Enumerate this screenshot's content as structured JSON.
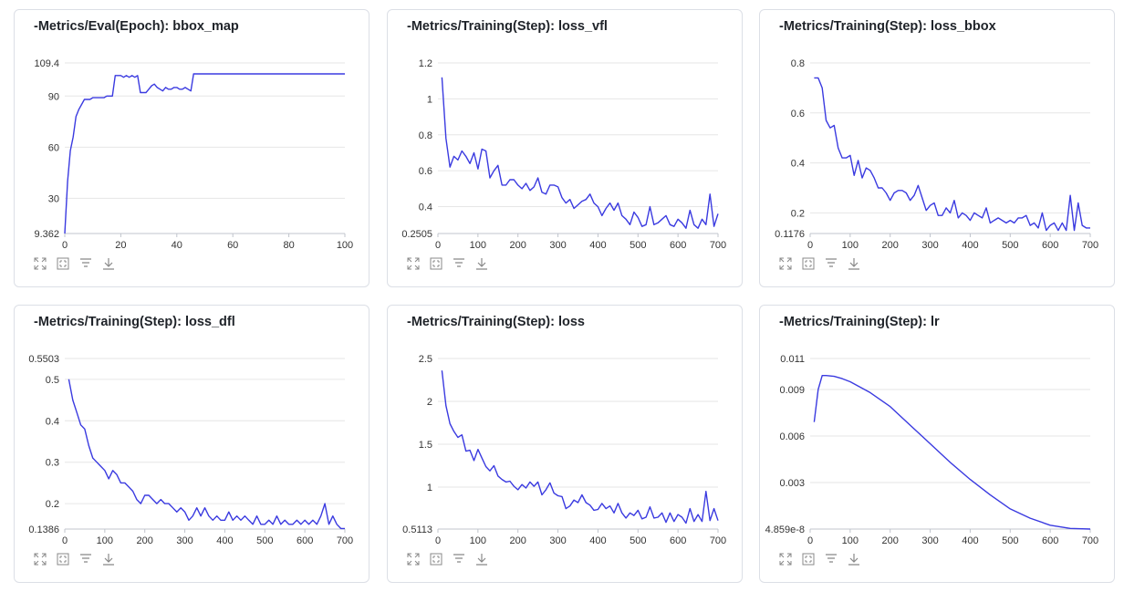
{
  "colors": {
    "line": "#3a3ae0",
    "grid": "#e6e6e6",
    "axis": "#c0c4cc"
  },
  "toolbar_icons": [
    "fullscreen-icon",
    "fit-view-icon",
    "filter-icon",
    "download-icon"
  ],
  "chart_data": [
    {
      "type": "line",
      "title": "-Metrics/Eval(Epoch): bbox_map",
      "xlim": [
        0,
        100
      ],
      "ylim": [
        9.362,
        109.4
      ],
      "xticks": [
        0,
        20,
        40,
        60,
        80,
        100
      ],
      "yticks": [
        9.362,
        30,
        60,
        90,
        109.4
      ],
      "ytick_labels": [
        "9.362",
        "30",
        "60",
        "90",
        "109.4"
      ],
      "series": [
        {
          "name": "bbox_map",
          "x": [
            0,
            1,
            2,
            3,
            4,
            5,
            6,
            7,
            8,
            9,
            10,
            11,
            12,
            13,
            14,
            15,
            16,
            17,
            18,
            19,
            20,
            21,
            22,
            23,
            24,
            25,
            26,
            27,
            28,
            29,
            30,
            31,
            32,
            33,
            34,
            35,
            36,
            37,
            38,
            39,
            40,
            41,
            42,
            43,
            44,
            45,
            46,
            48,
            50,
            52,
            54,
            56,
            58,
            60,
            62,
            64,
            66,
            68,
            70,
            72,
            74,
            76,
            78,
            80,
            82,
            84,
            86,
            88,
            90,
            92,
            94,
            96,
            98,
            100
          ],
          "y": [
            9.362,
            40,
            58,
            66,
            78,
            82,
            85,
            88,
            88,
            88,
            89,
            89,
            89,
            89,
            89,
            90,
            90,
            90,
            102,
            102,
            102,
            101,
            102,
            101,
            102,
            101,
            102,
            92,
            92,
            92,
            94,
            96,
            97,
            95,
            94,
            93,
            95,
            94,
            94,
            95,
            95,
            94,
            94,
            95,
            94,
            93,
            103,
            103,
            103,
            103,
            103,
            103,
            103,
            103,
            103,
            103,
            103,
            103,
            103,
            103,
            103,
            103,
            103,
            103,
            103,
            103,
            103,
            103,
            103,
            103,
            103,
            103,
            103,
            103
          ]
        }
      ]
    },
    {
      "type": "line",
      "title": "-Metrics/Training(Step): loss_vfl",
      "xlim": [
        0,
        700
      ],
      "ylim": [
        0.2505,
        1.2
      ],
      "xticks": [
        0,
        100,
        200,
        300,
        400,
        500,
        600,
        700
      ],
      "yticks": [
        0.2505,
        0.4,
        0.6,
        0.8,
        1,
        1.2
      ],
      "ytick_labels": [
        "0.2505",
        "0.4",
        "0.6",
        "0.8",
        "1",
        "1.2"
      ],
      "series": [
        {
          "name": "loss_vfl",
          "x": [
            10,
            20,
            30,
            40,
            50,
            60,
            70,
            80,
            90,
            100,
            110,
            120,
            130,
            140,
            150,
            160,
            170,
            180,
            190,
            200,
            210,
            220,
            230,
            240,
            250,
            260,
            270,
            280,
            290,
            300,
            310,
            320,
            330,
            340,
            350,
            360,
            370,
            380,
            390,
            400,
            410,
            420,
            430,
            440,
            450,
            460,
            470,
            480,
            490,
            500,
            510,
            520,
            530,
            540,
            550,
            560,
            570,
            580,
            590,
            600,
            610,
            620,
            630,
            640,
            650,
            660,
            670,
            680,
            690,
            700
          ],
          "y": [
            1.12,
            0.78,
            0.62,
            0.68,
            0.66,
            0.71,
            0.68,
            0.64,
            0.7,
            0.61,
            0.72,
            0.71,
            0.56,
            0.6,
            0.63,
            0.52,
            0.52,
            0.55,
            0.55,
            0.52,
            0.5,
            0.53,
            0.49,
            0.51,
            0.56,
            0.48,
            0.47,
            0.52,
            0.52,
            0.51,
            0.45,
            0.42,
            0.44,
            0.39,
            0.41,
            0.43,
            0.44,
            0.47,
            0.42,
            0.4,
            0.35,
            0.39,
            0.42,
            0.38,
            0.42,
            0.35,
            0.33,
            0.3,
            0.37,
            0.34,
            0.29,
            0.3,
            0.4,
            0.3,
            0.31,
            0.33,
            0.35,
            0.3,
            0.29,
            0.33,
            0.31,
            0.28,
            0.38,
            0.3,
            0.28,
            0.33,
            0.3,
            0.47,
            0.29,
            0.36
          ]
        }
      ]
    },
    {
      "type": "line",
      "title": "-Metrics/Training(Step): loss_bbox",
      "xlim": [
        0,
        700
      ],
      "ylim": [
        0.1176,
        0.8
      ],
      "xticks": [
        0,
        100,
        200,
        300,
        400,
        500,
        600,
        700
      ],
      "yticks": [
        0.1176,
        0.2,
        0.4,
        0.6,
        0.8
      ],
      "ytick_labels": [
        "0.1176",
        "0.2",
        "0.4",
        "0.6",
        "0.8"
      ],
      "series": [
        {
          "name": "loss_bbox",
          "x": [
            10,
            20,
            30,
            40,
            50,
            60,
            70,
            80,
            90,
            100,
            110,
            120,
            130,
            140,
            150,
            160,
            170,
            180,
            190,
            200,
            210,
            220,
            230,
            240,
            250,
            260,
            270,
            280,
            290,
            300,
            310,
            320,
            330,
            340,
            350,
            360,
            370,
            380,
            390,
            400,
            410,
            420,
            430,
            440,
            450,
            460,
            470,
            480,
            490,
            500,
            510,
            520,
            530,
            540,
            550,
            560,
            570,
            580,
            590,
            600,
            610,
            620,
            630,
            640,
            650,
            660,
            670,
            680,
            690,
            700
          ],
          "y": [
            0.74,
            0.74,
            0.7,
            0.57,
            0.54,
            0.55,
            0.46,
            0.42,
            0.42,
            0.43,
            0.35,
            0.41,
            0.34,
            0.38,
            0.37,
            0.34,
            0.3,
            0.3,
            0.28,
            0.25,
            0.28,
            0.29,
            0.29,
            0.28,
            0.25,
            0.27,
            0.31,
            0.26,
            0.21,
            0.23,
            0.24,
            0.19,
            0.19,
            0.22,
            0.2,
            0.25,
            0.18,
            0.2,
            0.19,
            0.17,
            0.2,
            0.19,
            0.18,
            0.22,
            0.16,
            0.17,
            0.18,
            0.17,
            0.16,
            0.17,
            0.16,
            0.18,
            0.18,
            0.19,
            0.15,
            0.16,
            0.14,
            0.2,
            0.13,
            0.15,
            0.16,
            0.13,
            0.16,
            0.13,
            0.27,
            0.13,
            0.24,
            0.15,
            0.14,
            0.14
          ]
        }
      ]
    },
    {
      "type": "line",
      "title": "-Metrics/Training(Step): loss_dfl",
      "xlim": [
        0,
        700
      ],
      "ylim": [
        0.1386,
        0.5503
      ],
      "xticks": [
        0,
        100,
        200,
        300,
        400,
        500,
        600,
        700
      ],
      "yticks": [
        0.1386,
        0.2,
        0.3,
        0.4,
        0.5,
        0.5503
      ],
      "ytick_labels": [
        "0.1386",
        "0.2",
        "0.3",
        "0.4",
        "0.5",
        "0.5503"
      ],
      "series": [
        {
          "name": "loss_dfl",
          "x": [
            10,
            20,
            30,
            40,
            50,
            60,
            70,
            80,
            90,
            100,
            110,
            120,
            130,
            140,
            150,
            160,
            170,
            180,
            190,
            200,
            210,
            220,
            230,
            240,
            250,
            260,
            270,
            280,
            290,
            300,
            310,
            320,
            330,
            340,
            350,
            360,
            370,
            380,
            390,
            400,
            410,
            420,
            430,
            440,
            450,
            460,
            470,
            480,
            490,
            500,
            510,
            520,
            530,
            540,
            550,
            560,
            570,
            580,
            590,
            600,
            610,
            620,
            630,
            640,
            650,
            660,
            670,
            680,
            690,
            700
          ],
          "y": [
            0.5,
            0.45,
            0.42,
            0.39,
            0.38,
            0.34,
            0.31,
            0.3,
            0.29,
            0.28,
            0.26,
            0.28,
            0.27,
            0.25,
            0.25,
            0.24,
            0.23,
            0.21,
            0.2,
            0.22,
            0.22,
            0.21,
            0.2,
            0.21,
            0.2,
            0.2,
            0.19,
            0.18,
            0.19,
            0.18,
            0.16,
            0.17,
            0.19,
            0.17,
            0.19,
            0.17,
            0.16,
            0.17,
            0.16,
            0.16,
            0.18,
            0.16,
            0.17,
            0.16,
            0.17,
            0.16,
            0.15,
            0.17,
            0.15,
            0.15,
            0.16,
            0.15,
            0.17,
            0.15,
            0.16,
            0.15,
            0.15,
            0.16,
            0.15,
            0.16,
            0.15,
            0.16,
            0.15,
            0.17,
            0.2,
            0.15,
            0.17,
            0.15,
            0.14,
            0.14
          ]
        }
      ]
    },
    {
      "type": "line",
      "title": "-Metrics/Training(Step): loss",
      "xlim": [
        0,
        700
      ],
      "ylim": [
        0.5113,
        2.5
      ],
      "xticks": [
        0,
        100,
        200,
        300,
        400,
        500,
        600,
        700
      ],
      "yticks": [
        0.5113,
        1,
        1.5,
        2,
        2.5
      ],
      "ytick_labels": [
        "0.5113",
        "1",
        "1.5",
        "2",
        "2.5"
      ],
      "series": [
        {
          "name": "loss",
          "x": [
            10,
            20,
            30,
            40,
            50,
            60,
            70,
            80,
            90,
            100,
            110,
            120,
            130,
            140,
            150,
            160,
            170,
            180,
            190,
            200,
            210,
            220,
            230,
            240,
            250,
            260,
            270,
            280,
            290,
            300,
            310,
            320,
            330,
            340,
            350,
            360,
            370,
            380,
            390,
            400,
            410,
            420,
            430,
            440,
            450,
            460,
            470,
            480,
            490,
            500,
            510,
            520,
            530,
            540,
            550,
            560,
            570,
            580,
            590,
            600,
            610,
            620,
            630,
            640,
            650,
            660,
            670,
            680,
            690,
            700
          ],
          "y": [
            2.36,
            1.95,
            1.74,
            1.65,
            1.58,
            1.61,
            1.42,
            1.43,
            1.31,
            1.44,
            1.34,
            1.24,
            1.19,
            1.25,
            1.13,
            1.09,
            1.06,
            1.07,
            1.01,
            0.97,
            1.03,
            0.99,
            1.06,
            1.01,
            1.06,
            0.91,
            0.97,
            1.05,
            0.93,
            0.9,
            0.89,
            0.75,
            0.78,
            0.85,
            0.82,
            0.91,
            0.82,
            0.79,
            0.73,
            0.74,
            0.81,
            0.75,
            0.78,
            0.7,
            0.81,
            0.7,
            0.64,
            0.7,
            0.67,
            0.73,
            0.63,
            0.65,
            0.77,
            0.64,
            0.65,
            0.7,
            0.59,
            0.7,
            0.6,
            0.68,
            0.65,
            0.58,
            0.75,
            0.6,
            0.68,
            0.6,
            0.95,
            0.61,
            0.75,
            0.61
          ]
        }
      ]
    },
    {
      "type": "line",
      "title": "-Metrics/Training(Step): lr",
      "xlim": [
        0,
        700
      ],
      "ylim": [
        4.859e-08,
        0.011
      ],
      "xticks": [
        0,
        100,
        200,
        300,
        400,
        500,
        600,
        700
      ],
      "yticks": [
        4.859e-08,
        0.003,
        0.006,
        0.009,
        0.011
      ],
      "ytick_labels": [
        "4.859e-8",
        "0.003",
        "0.006",
        "0.009",
        "0.011"
      ],
      "series": [
        {
          "name": "lr",
          "x": [
            10,
            20,
            30,
            40,
            60,
            80,
            100,
            150,
            200,
            250,
            300,
            350,
            400,
            450,
            500,
            550,
            600,
            650,
            700
          ],
          "y": [
            0.0069,
            0.009,
            0.0099,
            0.0099,
            0.00985,
            0.0097,
            0.0095,
            0.0088,
            0.0079,
            0.0067,
            0.0055,
            0.0043,
            0.0032,
            0.0022,
            0.0013,
            0.0007,
            0.00025,
            4e-05,
            1e-07
          ]
        }
      ]
    }
  ]
}
